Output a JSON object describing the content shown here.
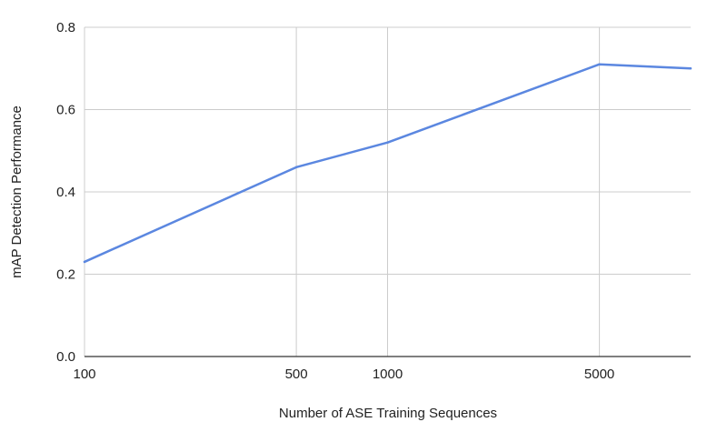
{
  "chart_data": {
    "type": "line",
    "xscale": "log",
    "x": [
      100,
      500,
      1000,
      5000,
      10000
    ],
    "series": [
      {
        "values": [
          0.23,
          0.46,
          0.52,
          0.71,
          0.7
        ]
      }
    ],
    "xticks": [
      100,
      500,
      1000,
      5000
    ],
    "xtick_labels": [
      "100",
      "500",
      "1000",
      "5000"
    ],
    "xlim": [
      100,
      10000
    ],
    "yticks": [
      0,
      0.2,
      0.4,
      0.6,
      0.8
    ],
    "ytick_labels": [
      "0.0",
      "0.2",
      "0.4",
      "0.6",
      "0.8"
    ],
    "ylim": [
      0,
      0.8
    ],
    "xlabel": "Number of ASE Training Sequences",
    "ylabel": "mAP Detection Performance",
    "grid": true,
    "legend": "none",
    "colors": {
      "series": "#5b87e0",
      "grid": "#cccccc",
      "axis": "#333333"
    }
  }
}
